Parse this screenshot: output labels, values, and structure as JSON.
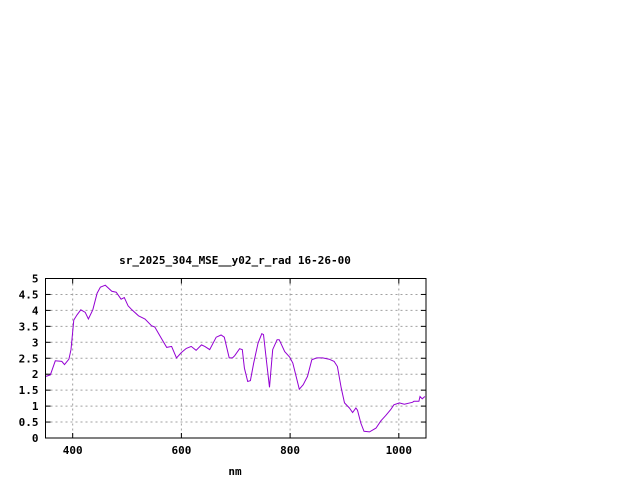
{
  "chart_data": {
    "type": "line",
    "title": "sr_2025_304_MSE__y02_r_rad 16-26-00",
    "xlabel": "nm",
    "ylabel": "",
    "xlim": [
      350,
      1050
    ],
    "ylim": [
      0,
      5
    ],
    "x_ticks": [
      400,
      600,
      800,
      1000
    ],
    "y_ticks": [
      "0",
      "0.5",
      "1",
      "1.5",
      "2",
      "2.5",
      "3",
      "3.5",
      "4",
      "4.5",
      "5"
    ],
    "grid": true,
    "line_color": "#9400d3",
    "series": [
      {
        "x": [
          351,
          359,
          368,
          380,
          385,
          393,
          397,
          402,
          408,
          415,
          423,
          429,
          437,
          445,
          451,
          460,
          472,
          480,
          489,
          495,
          502,
          509,
          521,
          533,
          545,
          551,
          563,
          573,
          582,
          591,
          600,
          609,
          618,
          627,
          637,
          643,
          652,
          664,
          673,
          679,
          688,
          694,
          698,
          707,
          712,
          716,
          722,
          727,
          733,
          741,
          748,
          751,
          757,
          762,
          768,
          776,
          780,
          790,
          799,
          805,
          817,
          824,
          832,
          840,
          849,
          860,
          872,
          881,
          887,
          894,
          900,
          909,
          915,
          921,
          924,
          930,
          936,
          946,
          958,
          967,
          976,
          985,
          991,
          1001,
          1010,
          1025,
          1028,
          1037,
          1039,
          1043,
          1048
        ],
        "y": [
          1.93,
          1.98,
          2.42,
          2.4,
          2.3,
          2.47,
          2.77,
          3.7,
          3.86,
          4.02,
          3.94,
          3.73,
          4.02,
          4.54,
          4.73,
          4.79,
          4.6,
          4.57,
          4.35,
          4.4,
          4.14,
          4.02,
          3.83,
          3.73,
          3.52,
          3.48,
          3.13,
          2.84,
          2.87,
          2.51,
          2.68,
          2.81,
          2.87,
          2.75,
          2.92,
          2.87,
          2.77,
          3.16,
          3.23,
          3.16,
          2.51,
          2.51,
          2.58,
          2.8,
          2.77,
          2.19,
          1.77,
          1.8,
          2.35,
          2.97,
          3.27,
          3.24,
          2.35,
          1.59,
          2.77,
          3.08,
          3.08,
          2.71,
          2.54,
          2.35,
          1.53,
          1.67,
          1.93,
          2.45,
          2.51,
          2.51,
          2.47,
          2.4,
          2.24,
          1.57,
          1.1,
          0.94,
          0.8,
          0.94,
          0.87,
          0.47,
          0.21,
          0.19,
          0.31,
          0.54,
          0.71,
          0.89,
          1.04,
          1.1,
          1.06,
          1.12,
          1.15,
          1.15,
          1.3,
          1.23,
          1.3
        ]
      }
    ]
  }
}
